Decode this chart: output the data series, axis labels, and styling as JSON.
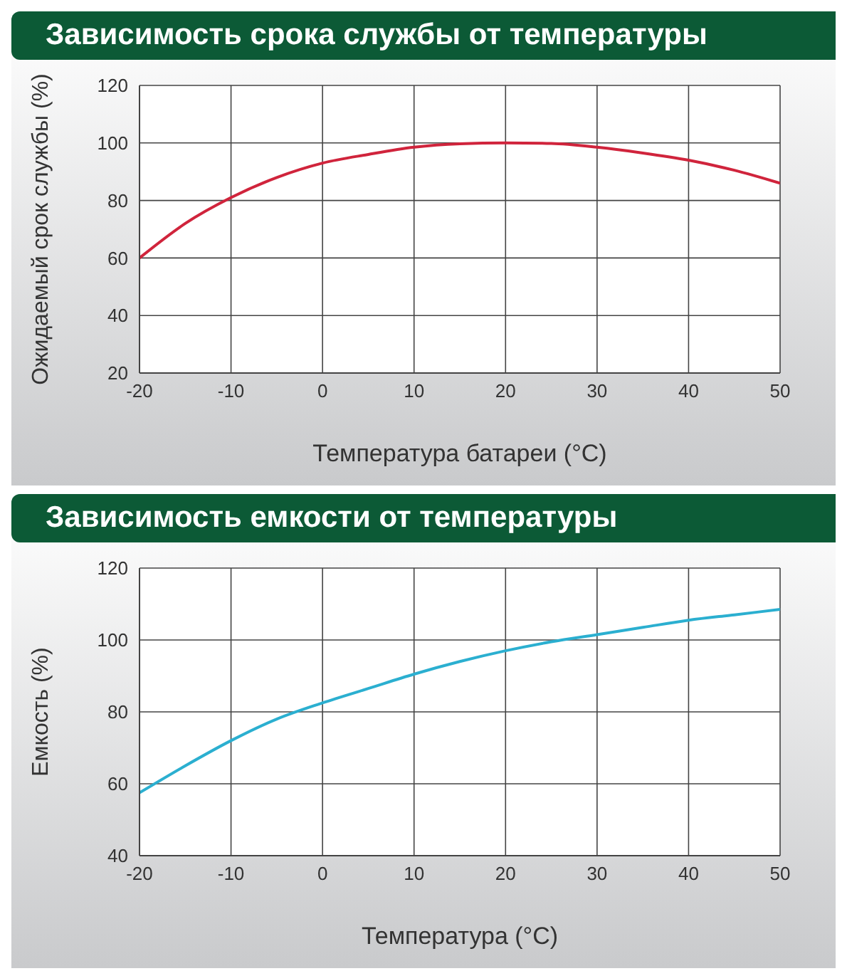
{
  "chart_data": [
    {
      "type": "line",
      "title": "Зависимость срока службы от температуры",
      "xlabel": "Температура батареи (°C)",
      "ylabel": "Ожидаемый срок службы (%)",
      "x": [
        -20,
        -15,
        -10,
        -5,
        0,
        5,
        10,
        15,
        20,
        25,
        30,
        35,
        40,
        45,
        50
      ],
      "series": [
        {
          "color": "#d0243c",
          "values": [
            60,
            72,
            81,
            88,
            93,
            96,
            98.5,
            99.7,
            100,
            99.8,
            98.5,
            96.5,
            94,
            90.5,
            86
          ]
        }
      ],
      "xlim": [
        -20,
        50
      ],
      "xticks": [
        -20,
        -10,
        0,
        10,
        20,
        30,
        40,
        50
      ],
      "ylim": [
        20,
        120
      ],
      "yticks": [
        20,
        40,
        60,
        80,
        100,
        120
      ],
      "grid": true,
      "legend": false,
      "marker": "none"
    },
    {
      "type": "line",
      "title": "Зависимость емкости от температуры",
      "xlabel": "Температура (°C)",
      "ylabel": "Емкость (%)",
      "x": [
        -20,
        -15,
        -10,
        -5,
        0,
        5,
        10,
        15,
        20,
        25,
        30,
        35,
        40,
        45,
        50
      ],
      "series": [
        {
          "color": "#2bafd0",
          "values": [
            57.5,
            65,
            72,
            78,
            82.5,
            86.5,
            90.5,
            94,
            97,
            99.5,
            101.5,
            103.5,
            105.5,
            107,
            108.5
          ]
        }
      ],
      "xlim": [
        -20,
        50
      ],
      "xticks": [
        -20,
        -10,
        0,
        10,
        20,
        30,
        40,
        50
      ],
      "ylim": [
        40,
        120
      ],
      "yticks": [
        40,
        60,
        80,
        100,
        120
      ],
      "grid": true,
      "legend": false,
      "marker": "none"
    }
  ]
}
